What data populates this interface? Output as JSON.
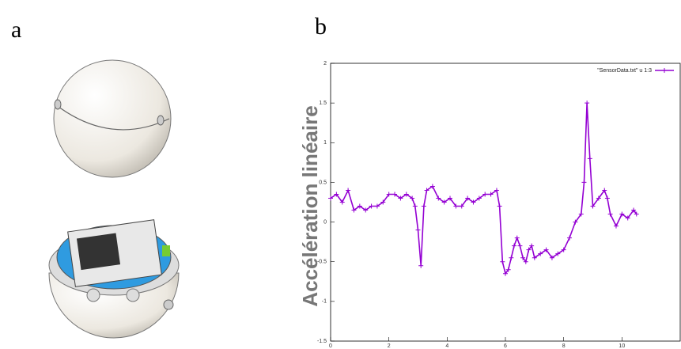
{
  "panels": {
    "a": "a",
    "b": "b"
  },
  "chart_data": {
    "type": "line",
    "ylabel": "Accélération linéaire",
    "x": [
      0,
      0.2,
      0.4,
      0.6,
      0.8,
      1.0,
      1.2,
      1.4,
      1.6,
      1.8,
      2.0,
      2.2,
      2.4,
      2.6,
      2.8,
      2.9,
      3.0,
      3.1,
      3.2,
      3.3,
      3.5,
      3.7,
      3.9,
      4.1,
      4.3,
      4.5,
      4.7,
      4.9,
      5.1,
      5.3,
      5.5,
      5.7,
      5.8,
      5.9,
      6.0,
      6.1,
      6.2,
      6.3,
      6.4,
      6.5,
      6.6,
      6.7,
      6.8,
      6.9,
      7.0,
      7.2,
      7.4,
      7.6,
      7.8,
      8.0,
      8.2,
      8.4,
      8.6,
      8.7,
      8.8,
      8.9,
      9.0,
      9.2,
      9.4,
      9.5,
      9.6,
      9.8,
      10.0,
      10.2,
      10.4,
      10.5
    ],
    "series": [
      {
        "name": "\"SensorData.txt\" u 1:3",
        "color": "#9400d3",
        "values": [
          0.3,
          0.35,
          0.25,
          0.4,
          0.15,
          0.2,
          0.15,
          0.2,
          0.2,
          0.25,
          0.35,
          0.35,
          0.3,
          0.35,
          0.3,
          0.2,
          -0.1,
          -0.55,
          0.2,
          0.4,
          0.45,
          0.3,
          0.25,
          0.3,
          0.2,
          0.2,
          0.3,
          0.25,
          0.3,
          0.35,
          0.35,
          0.4,
          0.2,
          -0.5,
          -0.65,
          -0.6,
          -0.45,
          -0.3,
          -0.2,
          -0.3,
          -0.45,
          -0.5,
          -0.35,
          -0.3,
          -0.45,
          -0.4,
          -0.35,
          -0.45,
          -0.4,
          -0.35,
          -0.2,
          0.0,
          0.1,
          0.5,
          1.5,
          0.8,
          0.2,
          0.3,
          0.4,
          0.3,
          0.1,
          -0.05,
          0.1,
          0.05,
          0.15,
          0.1
        ]
      }
    ],
    "xlim": [
      0,
      12
    ],
    "xticks": [
      0,
      2,
      4,
      6,
      8,
      10
    ],
    "ylim": [
      -1.5,
      2
    ],
    "yticks": [
      -1.5,
      -1,
      -0.5,
      0,
      0.5,
      1,
      1.5,
      2
    ],
    "legend": "top-right"
  }
}
